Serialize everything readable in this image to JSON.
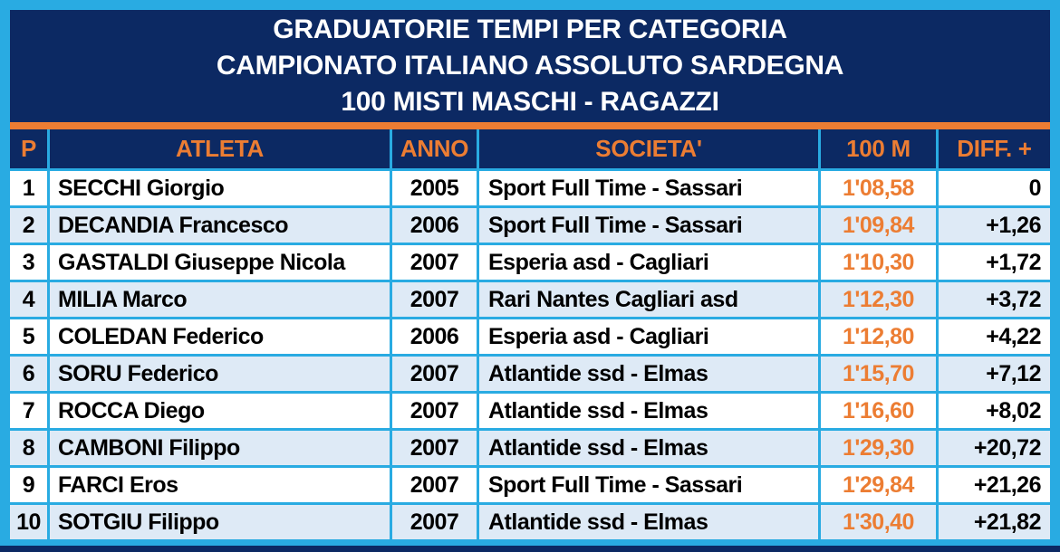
{
  "title": {
    "line1": "GRADUATORIE TEMPI PER CATEGORIA",
    "line2": "CAMPIONATO ITALIANO ASSOLUTO SARDEGNA",
    "line3": "100 MISTI MASCHI - RAGAZZI"
  },
  "table": {
    "columns": [
      "P",
      "ATLETA",
      "ANNO",
      "SOCIETA'",
      "100 M",
      "DIFF. +"
    ],
    "rows": [
      {
        "p": "1",
        "atleta": "SECCHI Giorgio",
        "anno": "2005",
        "societa": "Sport Full Time - Sassari",
        "tempo": "1'08,58",
        "diff": "0"
      },
      {
        "p": "2",
        "atleta": "DECANDIA Francesco",
        "anno": "2006",
        "societa": "Sport Full Time - Sassari",
        "tempo": "1'09,84",
        "diff": "+1,26"
      },
      {
        "p": "3",
        "atleta": "GASTALDI Giuseppe Nicola",
        "anno": "2007",
        "societa": "Esperia asd - Cagliari",
        "tempo": "1'10,30",
        "diff": "+1,72"
      },
      {
        "p": "4",
        "atleta": "MILIA Marco",
        "anno": "2007",
        "societa": "Rari Nantes Cagliari asd",
        "tempo": "1'12,30",
        "diff": "+3,72"
      },
      {
        "p": "5",
        "atleta": "COLEDAN Federico",
        "anno": "2006",
        "societa": "Esperia asd - Cagliari",
        "tempo": "1'12,80",
        "diff": "+4,22"
      },
      {
        "p": "6",
        "atleta": "SORU Federico",
        "anno": "2007",
        "societa": "Atlantide ssd - Elmas",
        "tempo": "1'15,70",
        "diff": "+7,12"
      },
      {
        "p": "7",
        "atleta": "ROCCA Diego",
        "anno": "2007",
        "societa": "Atlantide ssd - Elmas",
        "tempo": "1'16,60",
        "diff": "+8,02"
      },
      {
        "p": "8",
        "atleta": "CAMBONI Filippo",
        "anno": "2007",
        "societa": "Atlantide ssd - Elmas",
        "tempo": "1'29,30",
        "diff": "+20,72"
      },
      {
        "p": "9",
        "atleta": "FARCI Eros",
        "anno": "2007",
        "societa": "Sport Full Time - Sassari",
        "tempo": "1'29,84",
        "diff": "+21,26"
      },
      {
        "p": "10",
        "atleta": "SOTGIU Filippo",
        "anno": "2007",
        "societa": "Atlantide ssd - Elmas",
        "tempo": "1'30,40",
        "diff": "+21,82"
      }
    ]
  },
  "colors": {
    "border_cyan": "#29ABE2",
    "navy": "#0C2963",
    "orange": "#EC7D33",
    "row_alt_blue": "#DEEAF6",
    "row_white": "#FFFFFF",
    "text_black": "#000000",
    "title_white": "#FFFFFF"
  }
}
